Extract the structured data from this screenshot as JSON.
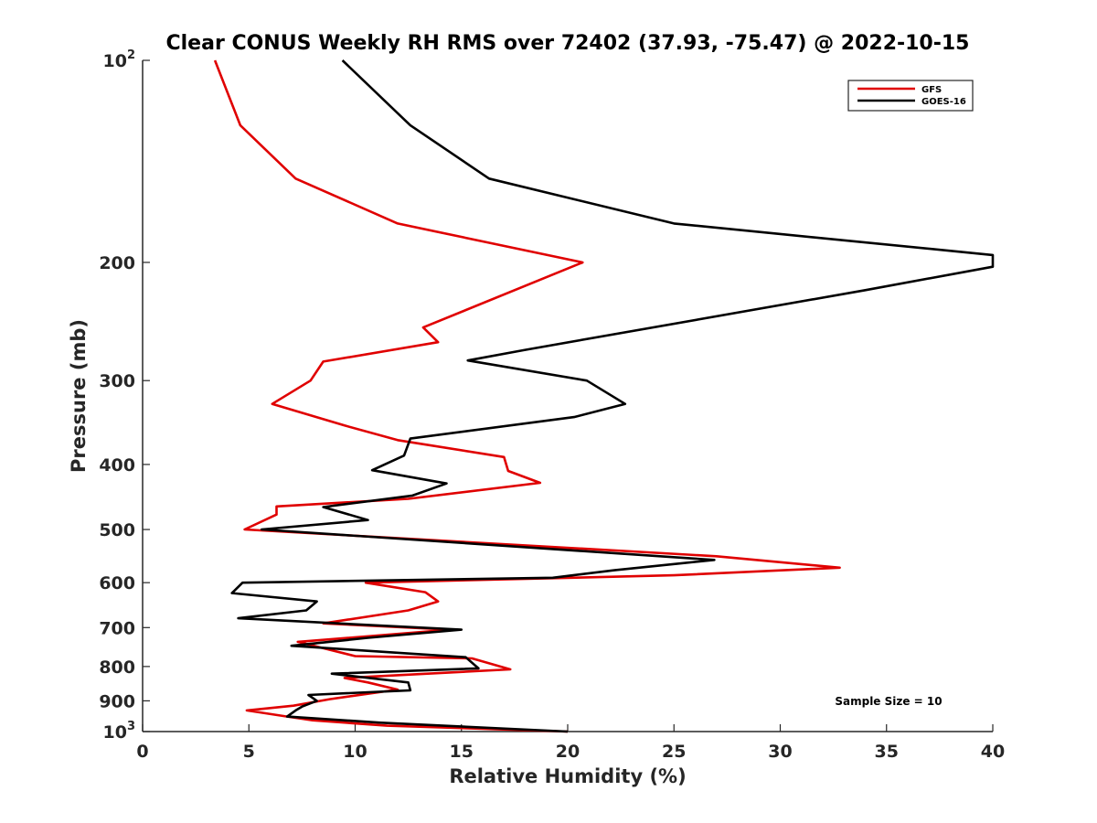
{
  "chart_data": {
    "type": "line",
    "title": "Clear CONUS Weekly RH RMS over 72402 (37.93, -75.47) @ 2022-10-15",
    "xlabel": "Relative Humidity (%)",
    "ylabel": "Pressure (mb)",
    "xlim": [
      0,
      40
    ],
    "ylim": [
      100,
      1000
    ],
    "yscale": "log",
    "yreversed": true,
    "x_ticks": [
      0,
      5,
      10,
      15,
      20,
      25,
      30,
      35,
      40
    ],
    "x_tick_labels": [
      "0",
      "5",
      "10",
      "15",
      "20",
      "25",
      "30",
      "35",
      "40"
    ],
    "y_ticks": [
      100,
      200,
      300,
      400,
      500,
      600,
      700,
      800,
      900,
      1000
    ],
    "y_tick_labels": [
      {
        "base": "10",
        "exp": "2"
      },
      {
        "base": "200",
        "exp": ""
      },
      {
        "base": "300",
        "exp": ""
      },
      {
        "base": "400",
        "exp": ""
      },
      {
        "base": "500",
        "exp": ""
      },
      {
        "base": "600",
        "exp": ""
      },
      {
        "base": "700",
        "exp": ""
      },
      {
        "base": "800",
        "exp": ""
      },
      {
        "base": "900",
        "exp": ""
      },
      {
        "base": "10",
        "exp": "3"
      }
    ],
    "grid": false,
    "legend_position": "top-right",
    "annotation": "Sample Size = 10",
    "series": [
      {
        "name": "GFS",
        "color": "#e00000",
        "points": [
          {
            "rh": 3.4,
            "p": 100
          },
          {
            "rh": 4.6,
            "p": 125
          },
          {
            "rh": 7.2,
            "p": 150
          },
          {
            "rh": 12.0,
            "p": 175
          },
          {
            "rh": 20.7,
            "p": 200
          },
          {
            "rh": 13.2,
            "p": 250
          },
          {
            "rh": 13.9,
            "p": 263
          },
          {
            "rh": 8.5,
            "p": 281
          },
          {
            "rh": 7.9,
            "p": 300
          },
          {
            "rh": 6.1,
            "p": 325
          },
          {
            "rh": 9.5,
            "p": 350
          },
          {
            "rh": 12.0,
            "p": 368
          },
          {
            "rh": 17.0,
            "p": 390
          },
          {
            "rh": 17.2,
            "p": 409
          },
          {
            "rh": 18.7,
            "p": 426
          },
          {
            "rh": 12.5,
            "p": 450
          },
          {
            "rh": 6.3,
            "p": 462
          },
          {
            "rh": 6.3,
            "p": 475
          },
          {
            "rh": 4.8,
            "p": 500
          },
          {
            "rh": 27.0,
            "p": 548
          },
          {
            "rh": 32.8,
            "p": 570
          },
          {
            "rh": 25.0,
            "p": 585
          },
          {
            "rh": 10.5,
            "p": 600
          },
          {
            "rh": 13.3,
            "p": 620
          },
          {
            "rh": 13.9,
            "p": 640
          },
          {
            "rh": 12.5,
            "p": 660
          },
          {
            "rh": 8.5,
            "p": 690
          },
          {
            "rh": 14.5,
            "p": 705
          },
          {
            "rh": 7.3,
            "p": 735
          },
          {
            "rh": 10.0,
            "p": 772
          },
          {
            "rh": 15.5,
            "p": 778
          },
          {
            "rh": 17.3,
            "p": 808
          },
          {
            "rh": 9.5,
            "p": 832
          },
          {
            "rh": 10.6,
            "p": 845
          },
          {
            "rh": 12.0,
            "p": 866
          },
          {
            "rh": 8.8,
            "p": 895
          },
          {
            "rh": 7.1,
            "p": 915
          },
          {
            "rh": 4.9,
            "p": 930
          },
          {
            "rh": 6.8,
            "p": 950
          },
          {
            "rh": 8.0,
            "p": 962
          },
          {
            "rh": 11.5,
            "p": 980
          },
          {
            "rh": 20.0,
            "p": 1000
          }
        ]
      },
      {
        "name": "GOES-16",
        "color": "#000000",
        "points": [
          {
            "rh": 9.4,
            "p": 100
          },
          {
            "rh": 12.6,
            "p": 125
          },
          {
            "rh": 16.3,
            "p": 150
          },
          {
            "rh": 25.0,
            "p": 175
          },
          {
            "rh": 40.0,
            "p": 195
          },
          {
            "rh": 40.0,
            "p": 203
          },
          {
            "rh": 34.0,
            "p": 220
          },
          {
            "rh": 18.0,
            "p": 270
          },
          {
            "rh": 15.3,
            "p": 280
          },
          {
            "rh": 20.9,
            "p": 300
          },
          {
            "rh": 22.7,
            "p": 325
          },
          {
            "rh": 20.3,
            "p": 340
          },
          {
            "rh": 12.6,
            "p": 366
          },
          {
            "rh": 12.3,
            "p": 388
          },
          {
            "rh": 10.8,
            "p": 408
          },
          {
            "rh": 14.3,
            "p": 427
          },
          {
            "rh": 12.7,
            "p": 445
          },
          {
            "rh": 8.5,
            "p": 463
          },
          {
            "rh": 10.6,
            "p": 484
          },
          {
            "rh": 5.6,
            "p": 500
          },
          {
            "rh": 26.9,
            "p": 555
          },
          {
            "rh": 22.2,
            "p": 575
          },
          {
            "rh": 19.3,
            "p": 590
          },
          {
            "rh": 4.7,
            "p": 600
          },
          {
            "rh": 4.2,
            "p": 622
          },
          {
            "rh": 8.2,
            "p": 640
          },
          {
            "rh": 7.7,
            "p": 660
          },
          {
            "rh": 4.5,
            "p": 678
          },
          {
            "rh": 15.0,
            "p": 705
          },
          {
            "rh": 10.6,
            "p": 725
          },
          {
            "rh": 7.0,
            "p": 745
          },
          {
            "rh": 15.2,
            "p": 775
          },
          {
            "rh": 15.8,
            "p": 805
          },
          {
            "rh": 8.9,
            "p": 820
          },
          {
            "rh": 12.5,
            "p": 845
          },
          {
            "rh": 12.6,
            "p": 868
          },
          {
            "rh": 7.8,
            "p": 882
          },
          {
            "rh": 8.2,
            "p": 900
          },
          {
            "rh": 7.5,
            "p": 918
          },
          {
            "rh": 7.2,
            "p": 930
          },
          {
            "rh": 6.8,
            "p": 950
          },
          {
            "rh": 11.2,
            "p": 970
          },
          {
            "rh": 20.0,
            "p": 1000
          }
        ]
      }
    ]
  }
}
